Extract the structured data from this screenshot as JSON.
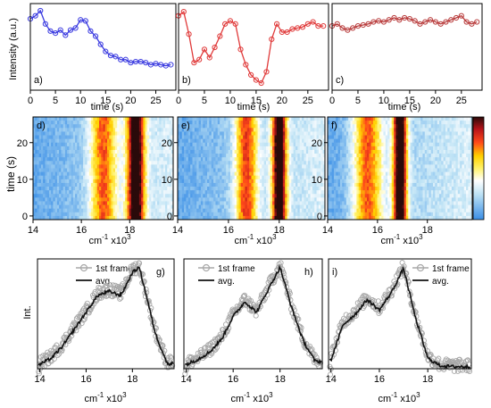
{
  "row_labels": {
    "top_ylabel": "Intensity (a.u.)",
    "mid_ylabel": "time (s)",
    "bot_ylabel": "Int."
  },
  "time_xlabel": "time (s)",
  "wn_xlabel": "cm",
  "wn_xlabel_sup1": "-1",
  "wn_xlabel_mid": " x10",
  "wn_xlabel_sup2": "3",
  "legend": {
    "frame_label": "1st frame",
    "avg_label": "avg."
  },
  "colors": {
    "a": "#3a3ae0",
    "b": "#e03a3a",
    "c": "#b83a3a",
    "frame_gray": "#a8a8a8",
    "avg_black": "#111111"
  },
  "chart_data": [
    {
      "panel": "a)",
      "type": "line",
      "series_color": "#3a3ae0",
      "xlim": [
        0,
        29
      ],
      "xticks": [
        0,
        5,
        10,
        15,
        20,
        25
      ],
      "x": [
        0,
        1,
        2,
        3,
        4,
        5,
        6,
        7,
        8,
        9,
        10,
        11,
        12,
        13,
        14,
        15,
        16,
        17,
        18,
        19,
        20,
        21,
        22,
        23,
        24,
        25,
        26,
        27,
        28
      ],
      "values": [
        0.85,
        0.88,
        0.93,
        0.8,
        0.73,
        0.71,
        0.74,
        0.69,
        0.74,
        0.76,
        0.84,
        0.83,
        0.73,
        0.68,
        0.6,
        0.53,
        0.49,
        0.48,
        0.45,
        0.45,
        0.42,
        0.43,
        0.43,
        0.42,
        0.4,
        0.41,
        0.4,
        0.39,
        0.4
      ]
    },
    {
      "panel": "b)",
      "type": "line",
      "series_color": "#e03a3a",
      "xlim": [
        0,
        29
      ],
      "xticks": [
        0,
        5,
        10,
        15,
        20,
        25
      ],
      "x": [
        0,
        1,
        2,
        3,
        4,
        5,
        6,
        7,
        8,
        9,
        10,
        11,
        12,
        13,
        14,
        15,
        16,
        17,
        18,
        19,
        20,
        21,
        22,
        23,
        24,
        25,
        26,
        27,
        28
      ],
      "values": [
        0.88,
        0.92,
        0.7,
        0.42,
        0.45,
        0.55,
        0.47,
        0.57,
        0.68,
        0.8,
        0.83,
        0.8,
        0.55,
        0.4,
        0.3,
        0.25,
        0.22,
        0.33,
        0.65,
        0.8,
        0.72,
        0.72,
        0.75,
        0.76,
        0.77,
        0.8,
        0.82,
        0.78,
        0.78
      ]
    },
    {
      "panel": "c)",
      "type": "line",
      "series_color": "#b83a3a",
      "xlim": [
        0,
        29
      ],
      "xticks": [
        0,
        5,
        10,
        15,
        20,
        25
      ],
      "x": [
        0,
        1,
        2,
        3,
        4,
        5,
        6,
        7,
        8,
        9,
        10,
        11,
        12,
        13,
        14,
        15,
        16,
        17,
        18,
        19,
        20,
        21,
        22,
        23,
        24,
        25,
        26,
        27,
        28
      ],
      "values": [
        0.78,
        0.8,
        0.76,
        0.74,
        0.76,
        0.78,
        0.79,
        0.8,
        0.82,
        0.83,
        0.82,
        0.84,
        0.86,
        0.84,
        0.86,
        0.85,
        0.83,
        0.8,
        0.82,
        0.84,
        0.82,
        0.8,
        0.82,
        0.84,
        0.86,
        0.88,
        0.82,
        0.8,
        0.82
      ]
    },
    {
      "panel": "d)",
      "type": "heatmap",
      "xlim": [
        14,
        19.8
      ],
      "xticks": [
        14,
        16,
        18
      ],
      "ylim": [
        -1,
        27
      ],
      "yticks": [
        0,
        10,
        20
      ],
      "bands": [
        {
          "center": 16.9,
          "width": 0.55,
          "amp": 0.55
        },
        {
          "center": 18.25,
          "width": 0.35,
          "amp": 0.95
        }
      ]
    },
    {
      "panel": "e)",
      "type": "heatmap",
      "xlim": [
        14,
        19.8
      ],
      "xticks": [
        14,
        16,
        18
      ],
      "ylim": [
        -1,
        27
      ],
      "yticks": [
        0,
        10,
        20
      ],
      "bands": [
        {
          "center": 16.7,
          "width": 0.45,
          "amp": 0.6
        },
        {
          "center": 18.0,
          "width": 0.28,
          "amp": 0.95
        }
      ]
    },
    {
      "panel": "f)",
      "type": "heatmap",
      "xlim": [
        14,
        19.8
      ],
      "xticks": [
        14,
        16,
        18
      ],
      "ylim": [
        -1,
        27
      ],
      "yticks": [
        0,
        10,
        20
      ],
      "bands": [
        {
          "center": 15.6,
          "width": 0.6,
          "amp": 0.6
        },
        {
          "center": 16.9,
          "width": 0.28,
          "amp": 1.0
        }
      ]
    },
    {
      "panel": "g)",
      "type": "line",
      "xlim": [
        13.9,
        19.8
      ],
      "xticks": [
        14,
        16,
        18
      ],
      "series": [
        {
          "name": "1st frame",
          "x": [
            14.0,
            14.5,
            15.0,
            15.5,
            16.0,
            16.5,
            17.0,
            17.5,
            18.0,
            18.3,
            18.6,
            19.0,
            19.5
          ],
          "values": [
            0.05,
            0.12,
            0.24,
            0.4,
            0.55,
            0.72,
            0.76,
            0.72,
            0.95,
            0.98,
            0.72,
            0.35,
            0.06
          ]
        },
        {
          "name": "avg.",
          "x": [
            14.0,
            14.5,
            15.0,
            15.5,
            16.0,
            16.5,
            17.0,
            17.5,
            18.0,
            18.3,
            18.6,
            19.0,
            19.5
          ],
          "values": [
            0.04,
            0.1,
            0.22,
            0.38,
            0.54,
            0.7,
            0.74,
            0.7,
            0.92,
            0.97,
            0.7,
            0.33,
            0.05
          ]
        }
      ]
    },
    {
      "panel": "h)",
      "type": "line",
      "xlim": [
        13.9,
        19.8
      ],
      "xticks": [
        14,
        16,
        18
      ],
      "series": [
        {
          "name": "1st frame",
          "x": [
            14.0,
            14.5,
            15.0,
            15.5,
            16.0,
            16.5,
            17.0,
            17.5,
            18.0,
            18.5,
            19.0,
            19.5
          ],
          "values": [
            0.05,
            0.1,
            0.18,
            0.3,
            0.52,
            0.66,
            0.55,
            0.78,
            0.99,
            0.6,
            0.28,
            0.08
          ]
        },
        {
          "name": "avg.",
          "x": [
            14.0,
            14.5,
            15.0,
            15.5,
            16.0,
            16.5,
            17.0,
            17.5,
            18.0,
            18.5,
            19.0,
            19.5
          ],
          "values": [
            0.04,
            0.09,
            0.16,
            0.28,
            0.5,
            0.64,
            0.54,
            0.76,
            0.97,
            0.58,
            0.26,
            0.07
          ]
        }
      ]
    },
    {
      "panel": "i)",
      "type": "line",
      "xlim": [
        13.9,
        19.8
      ],
      "xticks": [
        14,
        16,
        18
      ],
      "series": [
        {
          "name": "1st frame",
          "x": [
            14.0,
            14.5,
            15.0,
            15.5,
            16.0,
            16.5,
            17.0,
            17.5,
            18.0,
            18.5,
            19.0,
            19.5
          ],
          "values": [
            0.1,
            0.45,
            0.55,
            0.68,
            0.58,
            0.75,
            0.98,
            0.5,
            0.12,
            0.04,
            0.03,
            0.03
          ]
        },
        {
          "name": "avg.",
          "x": [
            14.0,
            14.5,
            15.0,
            15.5,
            16.0,
            16.5,
            17.0,
            17.5,
            18.0,
            18.5,
            19.0,
            19.5
          ],
          "values": [
            0.08,
            0.42,
            0.52,
            0.66,
            0.56,
            0.73,
            0.96,
            0.48,
            0.1,
            0.03,
            0.02,
            0.02
          ]
        }
      ]
    }
  ]
}
